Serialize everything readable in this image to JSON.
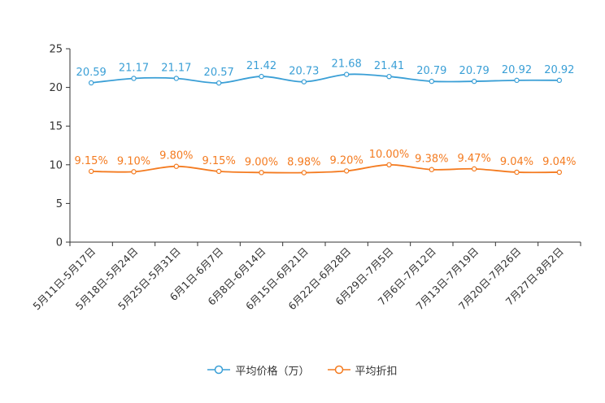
{
  "chart_data": {
    "type": "line",
    "title": "",
    "xlabel": "",
    "ylabel": "",
    "ylim": [
      0,
      25
    ],
    "yticks": [
      0,
      5,
      10,
      15,
      20,
      25
    ],
    "grid": false,
    "legend_position": "bottom-center",
    "categories": [
      "5月11日-5月17日",
      "5月18日-5月24日",
      "5月25日-5月31日",
      "6月1日-6月7日",
      "6月8日-6月14日",
      "6月15日-6月21日",
      "6月22日-6月28日",
      "6月29日-7月5日",
      "7月6日-7月12日",
      "7月13日-7月19日",
      "7月20日-7月26日",
      "7月27日-8月2日"
    ],
    "series": [
      {
        "name": "平均价格（万）",
        "color": "#3a9fd6",
        "values": [
          20.59,
          21.17,
          21.17,
          20.57,
          21.42,
          20.73,
          21.68,
          21.41,
          20.79,
          20.79,
          20.92,
          20.92
        ],
        "labels": [
          "20.59",
          "21.17",
          "21.17",
          "20.57",
          "21.42",
          "20.73",
          "21.68",
          "21.41",
          "20.79",
          "20.79",
          "20.92",
          "20.92"
        ]
      },
      {
        "name": "平均折扣",
        "color": "#f47b20",
        "values": [
          9.15,
          9.1,
          9.8,
          9.15,
          9.0,
          8.98,
          9.2,
          10.0,
          9.38,
          9.47,
          9.04,
          9.04
        ],
        "labels": [
          "9.15%",
          "9.10%",
          "9.80%",
          "9.15%",
          "9.00%",
          "8.98%",
          "9.20%",
          "10.00%",
          "9.38%",
          "9.47%",
          "9.04%",
          "9.04%"
        ]
      }
    ]
  }
}
